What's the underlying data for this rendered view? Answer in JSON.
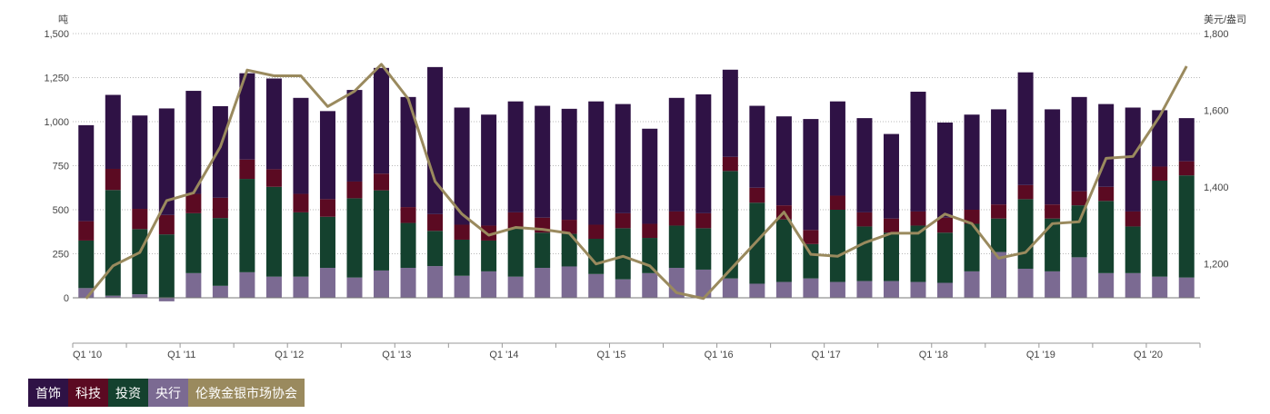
{
  "chart_data": {
    "type": "bar",
    "stacked": true,
    "left_axis": {
      "unit": "吨",
      "ylim": [
        0,
        1500
      ],
      "ticks": [
        "1,500",
        "1,250",
        "1,000",
        "750",
        "500",
        "250",
        "0"
      ]
    },
    "right_axis": {
      "unit": "美元/盎司",
      "ylim": [
        1100,
        1800
      ],
      "ticks": [
        "1,800",
        "1,600",
        "1,400",
        "1,200"
      ]
    },
    "x_tick_labels": [
      "Q1 '10",
      "Q1 '11",
      "Q1 '12",
      "Q1 '13",
      "Q1 '14",
      "Q1 '15",
      "Q1 '16",
      "Q1 '17",
      "Q1 '18",
      "Q1 '19",
      "Q1 '20"
    ],
    "grid": "horizontal dotted",
    "legend_position": "bottom-left",
    "series": [
      {
        "name": "央行",
        "color": "#7b6a92",
        "axis": "left",
        "values": [
          55,
          12,
          20,
          -20,
          140,
          68,
          145,
          120,
          120,
          170,
          115,
          155,
          170,
          180,
          125,
          150,
          120,
          170,
          178,
          135,
          105,
          140,
          170,
          160,
          110,
          80,
          90,
          110,
          90,
          95,
          95,
          90,
          85,
          150,
          260,
          165,
          150,
          230,
          140,
          140,
          120,
          115
        ]
      },
      {
        "name": "投资",
        "color": "#14412e",
        "axis": "left",
        "values": [
          270,
          600,
          370,
          360,
          340,
          385,
          530,
          510,
          365,
          290,
          450,
          455,
          255,
          200,
          205,
          175,
          275,
          200,
          185,
          200,
          290,
          200,
          240,
          235,
          610,
          460,
          355,
          195,
          410,
          310,
          275,
          320,
          285,
          270,
          190,
          395,
          300,
          295,
          410,
          265,
          545,
          580
        ]
      },
      {
        "name": "科技",
        "color": "#5b0a22",
        "axis": "left",
        "values": [
          110,
          120,
          115,
          110,
          110,
          115,
          110,
          100,
          105,
          100,
          95,
          95,
          90,
          95,
          85,
          85,
          90,
          85,
          80,
          80,
          85,
          80,
          80,
          85,
          80,
          85,
          80,
          80,
          80,
          80,
          80,
          80,
          85,
          80,
          80,
          80,
          80,
          80,
          80,
          85,
          80,
          80
        ]
      },
      {
        "name": "首饰",
        "color": "#2f1245",
        "axis": "left",
        "values": [
          545,
          420,
          530,
          605,
          585,
          520,
          490,
          515,
          545,
          500,
          520,
          600,
          625,
          835,
          665,
          630,
          630,
          635,
          630,
          700,
          620,
          540,
          645,
          675,
          495,
          465,
          505,
          630,
          535,
          535,
          480,
          680,
          540,
          540,
          540,
          640,
          540,
          535,
          470,
          590,
          320,
          245
        ]
      },
      {
        "name": "伦敦金银市场协会",
        "color": "#9a8a5e",
        "axis": "right",
        "chart_type": "line",
        "values": [
          1110,
          1195,
          1230,
          1365,
          1385,
          1505,
          1705,
          1690,
          1690,
          1610,
          1650,
          1720,
          1630,
          1415,
          1330,
          1275,
          1295,
          1290,
          1280,
          1200,
          1220,
          1195,
          1125,
          1110,
          1185,
          1260,
          1335,
          1225,
          1220,
          1255,
          1280,
          1280,
          1330,
          1305,
          1215,
          1230,
          1305,
          1310,
          1475,
          1480,
          1585,
          1715
        ]
      }
    ]
  },
  "legend": [
    {
      "label": "首饰",
      "color": "#2f1245"
    },
    {
      "label": "科技",
      "color": "#5b0a22"
    },
    {
      "label": "投资",
      "color": "#14412e"
    },
    {
      "label": "央行",
      "color": "#7b6a92"
    },
    {
      "label": "伦敦金银市场协会",
      "color": "#9a8a5e"
    }
  ]
}
